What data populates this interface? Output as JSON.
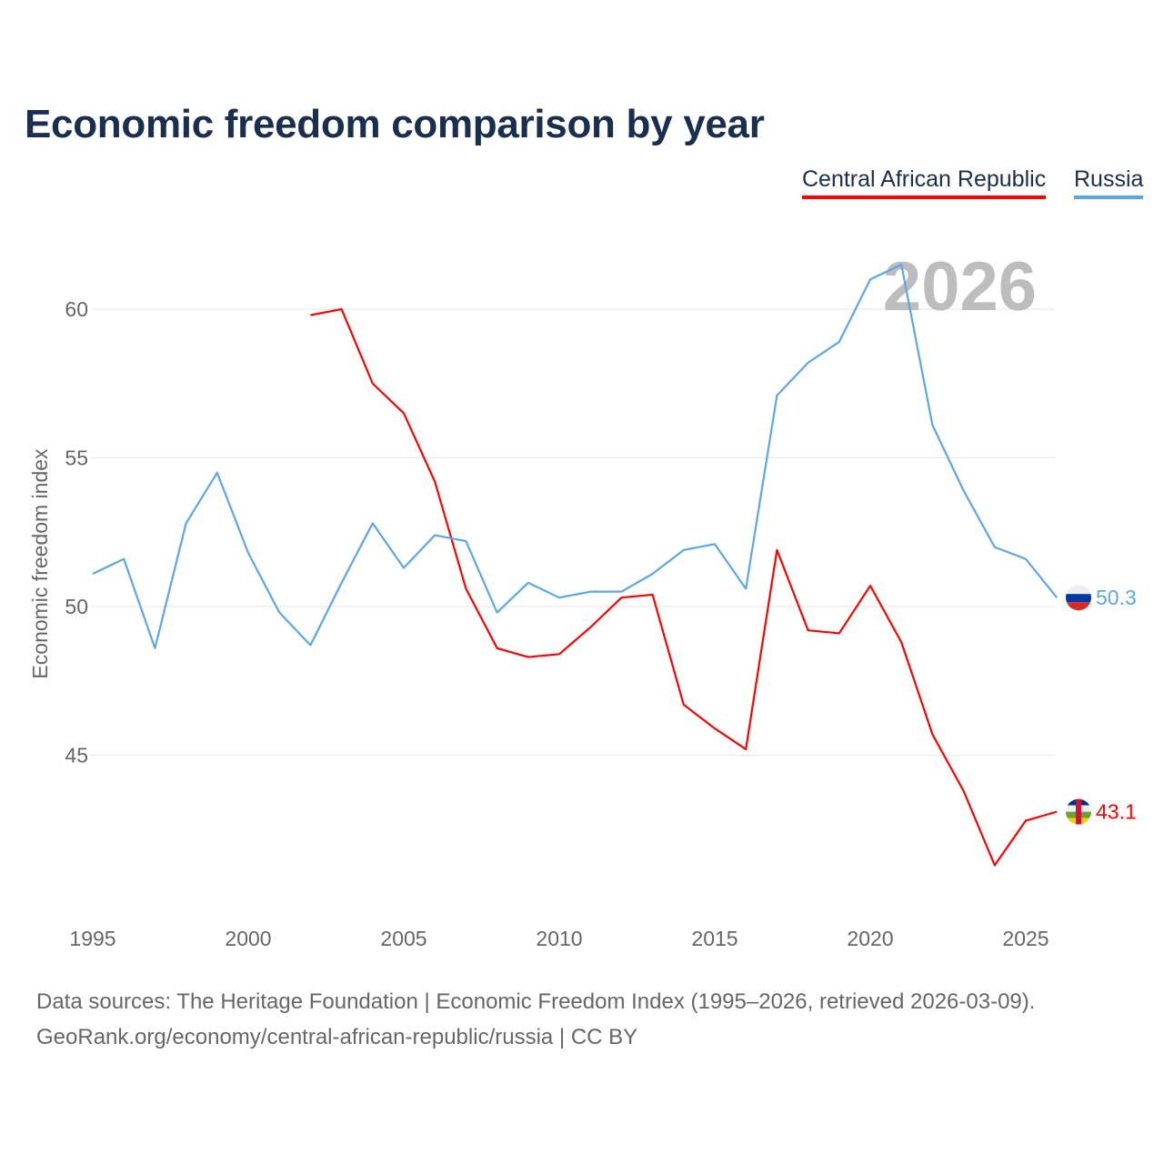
{
  "title": "Economic freedom comparison by year",
  "footer": {
    "line1": "Data sources: The Heritage Foundation | Economic Freedom Index (1995–2026, retrieved 2026-03-09).",
    "line2": "GeoRank.org/economy/central-african-republic/russia | CC BY"
  },
  "chart_data": {
    "type": "line",
    "title": "Economic freedom comparison by year",
    "xlabel": "",
    "ylabel": "Economic freedom index",
    "year_watermark": "2026",
    "xlim": [
      1995,
      2026
    ],
    "ylim": [
      40,
      62.5
    ],
    "xticks": [
      "1995",
      "2000",
      "2005",
      "2010",
      "2015",
      "2020",
      "2025"
    ],
    "yticks": [
      "45",
      "50",
      "55",
      "60"
    ],
    "grid": true,
    "legend_position": "top-right",
    "series": [
      {
        "name": "Central African Republic",
        "color": "#ff0000",
        "end_label": "43.1",
        "flag_icon": "flag-central-african-republic-icon",
        "x": [
          2002,
          2003,
          2004,
          2005,
          2006,
          2007,
          2008,
          2009,
          2010,
          2011,
          2012,
          2013,
          2014,
          2015,
          2016,
          2017,
          2018,
          2019,
          2020,
          2021,
          2022,
          2023,
          2024,
          2025,
          2026
        ],
        "values": [
          59.8,
          60.0,
          57.5,
          56.5,
          54.2,
          50.6,
          48.6,
          48.3,
          48.4,
          49.3,
          50.3,
          50.4,
          46.7,
          45.9,
          45.2,
          51.9,
          49.2,
          49.1,
          50.7,
          48.8,
          45.7,
          43.8,
          41.3,
          42.8,
          43.1
        ]
      },
      {
        "name": "Russia",
        "color": "#5ca6e8",
        "end_label": "50.3",
        "flag_icon": "flag-russia-icon",
        "x": [
          1995,
          1996,
          1997,
          1998,
          1999,
          2000,
          2001,
          2002,
          2003,
          2004,
          2005,
          2006,
          2007,
          2008,
          2009,
          2010,
          2011,
          2012,
          2013,
          2014,
          2015,
          2016,
          2017,
          2018,
          2019,
          2020,
          2021,
          2022,
          2023,
          2024,
          2025,
          2026
        ],
        "values": [
          51.1,
          51.6,
          48.6,
          52.8,
          54.5,
          51.8,
          49.8,
          48.7,
          50.8,
          52.8,
          51.3,
          52.4,
          52.2,
          49.8,
          50.8,
          50.3,
          50.5,
          50.5,
          51.1,
          51.9,
          52.1,
          50.6,
          57.1,
          58.2,
          58.9,
          61.0,
          61.5,
          56.1,
          53.9,
          52.0,
          51.6,
          50.3
        ]
      }
    ]
  }
}
